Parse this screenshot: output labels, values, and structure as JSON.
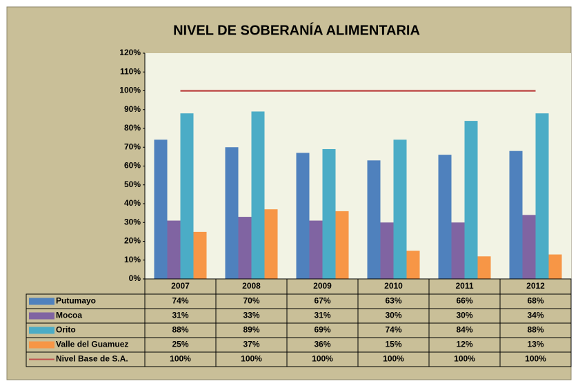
{
  "chart_data": {
    "type": "bar",
    "title": "NIVEL DE SOBERANÍA ALIMENTARIA",
    "categories": [
      "2007",
      "2008",
      "2009",
      "2010",
      "2011",
      "2012"
    ],
    "series": [
      {
        "name": "Putumayo",
        "color": "#4f81bd",
        "values": [
          74,
          70,
          67,
          63,
          66,
          68
        ],
        "value_labels": [
          "74%",
          "70%",
          "67%",
          "63%",
          "66%",
          "68%"
        ]
      },
      {
        "name": "Mocoa",
        "color": "#8064a2",
        "values": [
          31,
          33,
          31,
          30,
          30,
          34
        ],
        "value_labels": [
          "31%",
          "33%",
          "31%",
          "30%",
          "30%",
          "34%"
        ]
      },
      {
        "name": "Orito",
        "color": "#4bacc6",
        "values": [
          88,
          89,
          69,
          74,
          84,
          88
        ],
        "value_labels": [
          "88%",
          "89%",
          "69%",
          "74%",
          "84%",
          "88%"
        ]
      },
      {
        "name": "Valle del Guamuez",
        "color": "#f79646",
        "values": [
          25,
          37,
          36,
          15,
          12,
          13
        ],
        "value_labels": [
          "25%",
          "37%",
          "36%",
          "15%",
          "12%",
          "13%"
        ]
      },
      {
        "name": "Nivel Base de S.A.",
        "type": "line",
        "color": "#c0504d",
        "values": [
          100,
          100,
          100,
          100,
          100,
          100
        ],
        "value_labels": [
          "100%",
          "100%",
          "100%",
          "100%",
          "100%",
          "100%"
        ]
      }
    ],
    "ylim": [
      0,
      120
    ],
    "yticks": [
      {
        "value": 0,
        "label": "0%"
      },
      {
        "value": 10,
        "label": "10%"
      },
      {
        "value": 20,
        "label": "20%"
      },
      {
        "value": 30,
        "label": "30%"
      },
      {
        "value": 40,
        "label": "40%"
      },
      {
        "value": 50,
        "label": "50%"
      },
      {
        "value": 60,
        "label": "60%"
      },
      {
        "value": 70,
        "label": "70%"
      },
      {
        "value": 80,
        "label": "80%"
      },
      {
        "value": 90,
        "label": "90%"
      },
      {
        "value": 100,
        "label": "100%"
      },
      {
        "value": 110,
        "label": "110%"
      },
      {
        "value": 120,
        "label": "120%"
      }
    ],
    "grid": false,
    "legend": "bottom"
  }
}
